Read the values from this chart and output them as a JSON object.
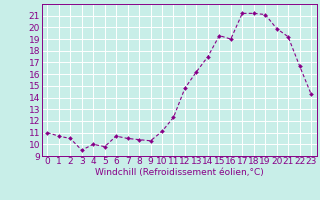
{
  "x": [
    0,
    1,
    2,
    3,
    4,
    5,
    6,
    7,
    8,
    9,
    10,
    11,
    12,
    13,
    14,
    15,
    16,
    17,
    18,
    19,
    20,
    21,
    22,
    23
  ],
  "y": [
    11.0,
    10.7,
    10.5,
    9.5,
    10.0,
    9.8,
    10.7,
    10.5,
    10.4,
    10.3,
    11.1,
    12.3,
    14.8,
    16.2,
    17.5,
    19.3,
    19.0,
    21.2,
    21.2,
    21.1,
    19.9,
    19.2,
    16.7,
    14.3
  ],
  "xlim": [
    -0.5,
    23.5
  ],
  "ylim": [
    9,
    22
  ],
  "yticks": [
    9,
    10,
    11,
    12,
    13,
    14,
    15,
    16,
    17,
    18,
    19,
    20,
    21
  ],
  "xticks": [
    0,
    1,
    2,
    3,
    4,
    5,
    6,
    7,
    8,
    9,
    10,
    11,
    12,
    13,
    14,
    15,
    16,
    17,
    18,
    19,
    20,
    21,
    22,
    23
  ],
  "xlabel": "Windchill (Refroidissement éolien,°C)",
  "line_color": "#880088",
  "marker_color": "#880088",
  "bg_color": "#c8eee8",
  "grid_color": "#ffffff",
  "xlabel_fontsize": 6.5,
  "tick_fontsize": 6.5
}
